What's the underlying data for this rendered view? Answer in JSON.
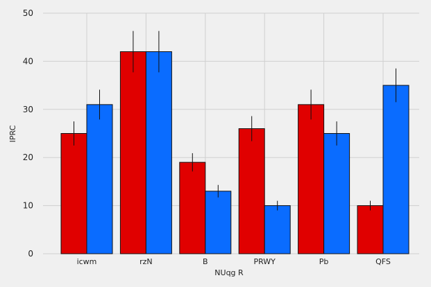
{
  "chart_data": {
    "type": "bar",
    "title": "",
    "xlabel": "NUqg  R",
    "ylabel": "IPRC",
    "categories": [
      "icwm",
      "rzN",
      "B",
      "PRWY",
      "Pb",
      "QFS"
    ],
    "ylim": [
      0,
      50
    ],
    "yticks": [
      0,
      10,
      20,
      30,
      40,
      50
    ],
    "grid": true,
    "legend": "none",
    "series": [
      {
        "color": "#e00000",
        "values": [
          25,
          42,
          19,
          26,
          31,
          10
        ],
        "errors": [
          2.5,
          4.3,
          1.9,
          2.6,
          3.1,
          1.0
        ]
      },
      {
        "color": "#0a6cff",
        "values": [
          31,
          42,
          13,
          10,
          25,
          35
        ],
        "errors": [
          3.1,
          4.3,
          1.3,
          1.0,
          2.5,
          3.5
        ]
      }
    ],
    "background": "#f0f0f0",
    "grid_color": "#cfcfcf"
  }
}
